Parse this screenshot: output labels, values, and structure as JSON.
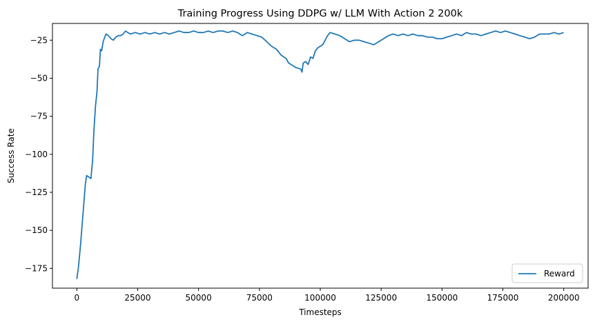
{
  "chart_data": {
    "type": "line",
    "title": "Training Progress Using DDPG w/ LLM With Action 2 200k",
    "xlabel": "Timesteps",
    "ylabel": "Success Rate",
    "xlim": [
      -10000,
      210000
    ],
    "ylim": [
      -188,
      -14
    ],
    "xticks": [
      0,
      25000,
      50000,
      75000,
      100000,
      125000,
      150000,
      175000,
      200000
    ],
    "yticks": [
      -175,
      -150,
      -125,
      -100,
      -75,
      -50,
      -25
    ],
    "grid": false,
    "legend_position": "lower right",
    "series": [
      {
        "name": "Reward",
        "color": "#1f77b4",
        "points": [
          [
            0,
            -182
          ],
          [
            700,
            -174
          ],
          [
            1500,
            -160
          ],
          [
            2500,
            -140
          ],
          [
            3500,
            -120
          ],
          [
            4000,
            -114
          ],
          [
            5000,
            -115
          ],
          [
            5800,
            -116
          ],
          [
            6500,
            -104
          ],
          [
            7000,
            -85
          ],
          [
            7700,
            -68
          ],
          [
            8300,
            -59
          ],
          [
            8700,
            -44
          ],
          [
            9300,
            -42
          ],
          [
            9700,
            -31
          ],
          [
            10200,
            -32
          ],
          [
            10800,
            -26
          ],
          [
            11500,
            -23
          ],
          [
            12000,
            -21
          ],
          [
            13000,
            -22
          ],
          [
            14000,
            -24
          ],
          [
            15000,
            -25
          ],
          [
            16000,
            -23
          ],
          [
            17000,
            -22
          ],
          [
            18000,
            -22
          ],
          [
            19000,
            -21
          ],
          [
            20000,
            -19
          ],
          [
            21000,
            -20
          ],
          [
            22000,
            -21
          ],
          [
            24000,
            -20
          ],
          [
            26000,
            -21
          ],
          [
            28000,
            -20
          ],
          [
            30000,
            -21
          ],
          [
            32000,
            -20
          ],
          [
            34000,
            -21
          ],
          [
            36000,
            -20
          ],
          [
            38000,
            -21
          ],
          [
            40000,
            -20
          ],
          [
            42000,
            -19
          ],
          [
            44000,
            -20
          ],
          [
            46000,
            -20
          ],
          [
            48000,
            -19
          ],
          [
            50000,
            -20
          ],
          [
            52000,
            -20
          ],
          [
            54000,
            -19
          ],
          [
            56000,
            -20
          ],
          [
            58000,
            -19
          ],
          [
            60000,
            -19
          ],
          [
            62000,
            -20
          ],
          [
            64000,
            -19
          ],
          [
            66000,
            -20
          ],
          [
            68000,
            -22
          ],
          [
            70000,
            -20
          ],
          [
            72000,
            -21
          ],
          [
            74000,
            -22
          ],
          [
            76000,
            -23
          ],
          [
            78000,
            -26
          ],
          [
            80000,
            -29
          ],
          [
            82000,
            -31
          ],
          [
            84000,
            -35
          ],
          [
            86000,
            -37
          ],
          [
            87000,
            -40
          ],
          [
            88000,
            -41
          ],
          [
            90000,
            -43
          ],
          [
            92000,
            -44
          ],
          [
            92500,
            -46
          ],
          [
            93000,
            -40
          ],
          [
            94000,
            -39
          ],
          [
            95000,
            -41
          ],
          [
            96000,
            -36
          ],
          [
            97000,
            -37
          ],
          [
            98000,
            -32
          ],
          [
            99000,
            -30
          ],
          [
            100000,
            -29
          ],
          [
            101000,
            -28
          ],
          [
            102000,
            -25
          ],
          [
            103000,
            -22
          ],
          [
            104000,
            -20
          ],
          [
            106000,
            -21
          ],
          [
            108000,
            -22
          ],
          [
            110000,
            -24
          ],
          [
            112000,
            -26
          ],
          [
            114000,
            -25
          ],
          [
            116000,
            -25
          ],
          [
            118000,
            -26
          ],
          [
            120000,
            -27
          ],
          [
            122000,
            -28
          ],
          [
            124000,
            -26
          ],
          [
            126000,
            -24
          ],
          [
            128000,
            -22
          ],
          [
            130000,
            -21
          ],
          [
            132000,
            -22
          ],
          [
            134000,
            -21
          ],
          [
            136000,
            -22
          ],
          [
            138000,
            -21
          ],
          [
            140000,
            -22
          ],
          [
            142000,
            -22
          ],
          [
            144000,
            -23
          ],
          [
            146000,
            -23
          ],
          [
            148000,
            -24
          ],
          [
            150000,
            -24
          ],
          [
            152000,
            -23
          ],
          [
            154000,
            -22
          ],
          [
            156000,
            -21
          ],
          [
            158000,
            -22
          ],
          [
            160000,
            -20
          ],
          [
            162000,
            -21
          ],
          [
            164000,
            -21
          ],
          [
            166000,
            -22
          ],
          [
            168000,
            -21
          ],
          [
            170000,
            -20
          ],
          [
            172000,
            -19
          ],
          [
            174000,
            -20
          ],
          [
            176000,
            -19
          ],
          [
            178000,
            -20
          ],
          [
            180000,
            -21
          ],
          [
            182000,
            -22
          ],
          [
            184000,
            -23
          ],
          [
            186000,
            -24
          ],
          [
            188000,
            -23
          ],
          [
            190000,
            -21
          ],
          [
            192000,
            -21
          ],
          [
            194000,
            -21
          ],
          [
            196000,
            -20
          ],
          [
            198000,
            -21
          ],
          [
            200000,
            -20
          ]
        ]
      }
    ]
  }
}
